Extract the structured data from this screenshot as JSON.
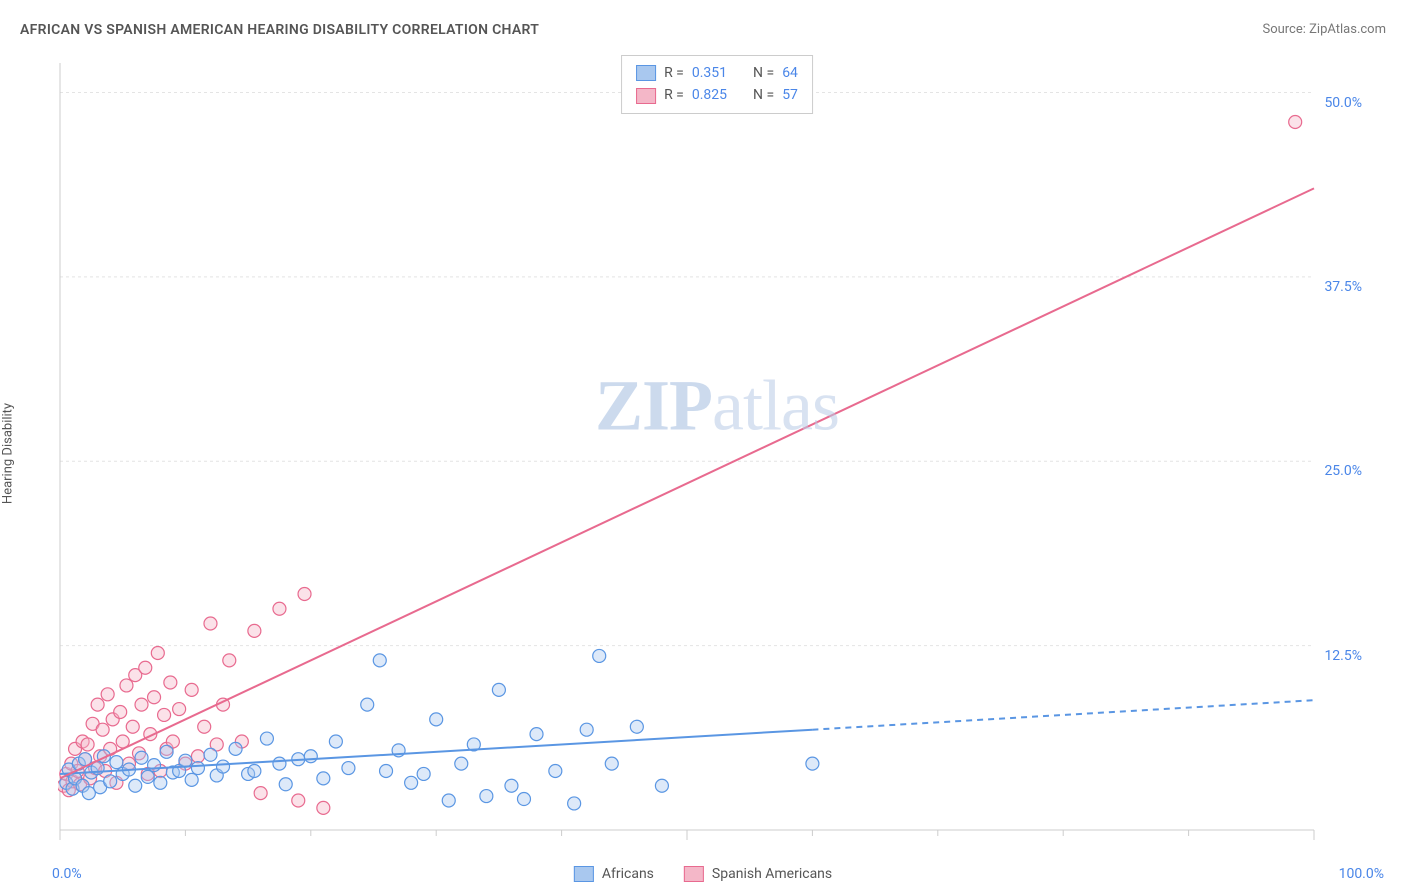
{
  "title": "AFRICAN VS SPANISH AMERICAN HEARING DISABILITY CORRELATION CHART",
  "source_label": "Source: ",
  "source_name": "ZipAtlas.com",
  "y_axis_label": "Hearing Disability",
  "watermark_zip": "ZIP",
  "watermark_atlas": "atlas",
  "chart": {
    "type": "scatter",
    "background_color": "#ffffff",
    "grid_color": "#e4e4e4",
    "axis_color": "#cccccc",
    "tick_color": "#cccccc",
    "xlim": [
      0,
      100
    ],
    "ylim": [
      0,
      52
    ],
    "x_ticks_major": [
      0,
      50,
      100
    ],
    "x_ticks_minor": [
      10,
      20,
      30,
      40,
      60,
      70,
      80,
      90
    ],
    "y_gridlines": [
      12.5,
      25.0,
      37.5,
      50.0
    ],
    "x_tick_labels": {
      "left": "0.0%",
      "right": "100.0%"
    },
    "y_tick_labels": [
      "12.5%",
      "25.0%",
      "37.5%",
      "50.0%"
    ],
    "marker_radius": 6.5,
    "marker_fill_opacity": 0.4,
    "marker_stroke_width": 1.2,
    "trend_line_width": 2,
    "trend_dash_pattern": "6,5",
    "series": {
      "africans": {
        "label": "Africans",
        "color": "#5a96e3",
        "fill": "#a9c8ef",
        "stroke": "#5a96e3",
        "r_label": "R = ",
        "r_value": "0.351",
        "n_label": "N = ",
        "n_value": "64",
        "trend_x_solid": [
          0,
          60
        ],
        "trend_y_solid": [
          3.8,
          6.8
        ],
        "trend_x_dash": [
          60,
          100
        ],
        "trend_y_dash": [
          6.8,
          8.8
        ],
        "points": [
          [
            0.5,
            3.2
          ],
          [
            0.7,
            4.1
          ],
          [
            1.0,
            2.8
          ],
          [
            1.2,
            3.5
          ],
          [
            1.5,
            4.5
          ],
          [
            1.8,
            3.0
          ],
          [
            2.0,
            4.8
          ],
          [
            2.3,
            2.5
          ],
          [
            2.5,
            3.9
          ],
          [
            3.0,
            4.2
          ],
          [
            3.2,
            2.9
          ],
          [
            3.5,
            5.0
          ],
          [
            4.0,
            3.3
          ],
          [
            4.5,
            4.6
          ],
          [
            5.0,
            3.8
          ],
          [
            5.5,
            4.1
          ],
          [
            6.0,
            3.0
          ],
          [
            6.5,
            4.9
          ],
          [
            7.0,
            3.6
          ],
          [
            7.5,
            4.4
          ],
          [
            8.0,
            3.2
          ],
          [
            8.5,
            5.3
          ],
          [
            9.0,
            3.9
          ],
          [
            9.5,
            4.0
          ],
          [
            10.0,
            4.7
          ],
          [
            10.5,
            3.4
          ],
          [
            11.0,
            4.2
          ],
          [
            12.0,
            5.1
          ],
          [
            12.5,
            3.7
          ],
          [
            13.0,
            4.3
          ],
          [
            14.0,
            5.5
          ],
          [
            15.0,
            3.8
          ],
          [
            15.5,
            4.0
          ],
          [
            16.5,
            6.2
          ],
          [
            17.5,
            4.5
          ],
          [
            18.0,
            3.1
          ],
          [
            19.0,
            4.8
          ],
          [
            20.0,
            5.0
          ],
          [
            21.0,
            3.5
          ],
          [
            22.0,
            6.0
          ],
          [
            23.0,
            4.2
          ],
          [
            24.5,
            8.5
          ],
          [
            25.5,
            11.5
          ],
          [
            26.0,
            4.0
          ],
          [
            27.0,
            5.4
          ],
          [
            28.0,
            3.2
          ],
          [
            29.0,
            3.8
          ],
          [
            30.0,
            7.5
          ],
          [
            31.0,
            2.0
          ],
          [
            32.0,
            4.5
          ],
          [
            33.0,
            5.8
          ],
          [
            34.0,
            2.3
          ],
          [
            35.0,
            9.5
          ],
          [
            36.0,
            3.0
          ],
          [
            37.0,
            2.1
          ],
          [
            38.0,
            6.5
          ],
          [
            39.5,
            4.0
          ],
          [
            41.0,
            1.8
          ],
          [
            42.0,
            6.8
          ],
          [
            43.0,
            11.8
          ],
          [
            44.0,
            4.5
          ],
          [
            46.0,
            7.0
          ],
          [
            48.0,
            3.0
          ],
          [
            60.0,
            4.5
          ]
        ]
      },
      "spanish": {
        "label": "Spanish Americans",
        "color": "#e86a8f",
        "fill": "#f4b7c8",
        "stroke": "#e86a8f",
        "r_label": "R = ",
        "r_value": "0.825",
        "n_label": "N = ",
        "n_value": "57",
        "trend_x_solid": [
          0,
          100
        ],
        "trend_y_solid": [
          3.5,
          43.5
        ],
        "trend_x_dash": null,
        "trend_y_dash": null,
        "points": [
          [
            0.3,
            3.0
          ],
          [
            0.5,
            3.8
          ],
          [
            0.7,
            2.7
          ],
          [
            0.9,
            4.5
          ],
          [
            1.0,
            3.3
          ],
          [
            1.2,
            5.5
          ],
          [
            1.4,
            4.0
          ],
          [
            1.6,
            3.1
          ],
          [
            1.8,
            6.0
          ],
          [
            2.0,
            4.8
          ],
          [
            2.2,
            5.8
          ],
          [
            2.4,
            3.5
          ],
          [
            2.6,
            7.2
          ],
          [
            2.8,
            4.2
          ],
          [
            3.0,
            8.5
          ],
          [
            3.2,
            5.0
          ],
          [
            3.4,
            6.8
          ],
          [
            3.6,
            4.0
          ],
          [
            3.8,
            9.2
          ],
          [
            4.0,
            5.5
          ],
          [
            4.2,
            7.5
          ],
          [
            4.5,
            3.2
          ],
          [
            4.8,
            8.0
          ],
          [
            5.0,
            6.0
          ],
          [
            5.3,
            9.8
          ],
          [
            5.5,
            4.5
          ],
          [
            5.8,
            7.0
          ],
          [
            6.0,
            10.5
          ],
          [
            6.3,
            5.2
          ],
          [
            6.5,
            8.5
          ],
          [
            6.8,
            11.0
          ],
          [
            7.0,
            3.8
          ],
          [
            7.2,
            6.5
          ],
          [
            7.5,
            9.0
          ],
          [
            7.8,
            12.0
          ],
          [
            8.0,
            4.0
          ],
          [
            8.3,
            7.8
          ],
          [
            8.5,
            5.5
          ],
          [
            8.8,
            10.0
          ],
          [
            9.0,
            6.0
          ],
          [
            9.5,
            8.2
          ],
          [
            10.0,
            4.5
          ],
          [
            10.5,
            9.5
          ],
          [
            11.0,
            5.0
          ],
          [
            11.5,
            7.0
          ],
          [
            12.0,
            14.0
          ],
          [
            12.5,
            5.8
          ],
          [
            13.0,
            8.5
          ],
          [
            13.5,
            11.5
          ],
          [
            14.5,
            6.0
          ],
          [
            15.5,
            13.5
          ],
          [
            16.0,
            2.5
          ],
          [
            17.5,
            15.0
          ],
          [
            19.0,
            2.0
          ],
          [
            19.5,
            16.0
          ],
          [
            21.0,
            1.5
          ],
          [
            98.5,
            48.0
          ]
        ]
      }
    }
  },
  "legend": {
    "border_color": "#cccccc",
    "swatch_border_width": 1
  }
}
